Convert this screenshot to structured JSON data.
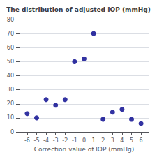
{
  "chart_data": {
    "type": "scatter",
    "title": "The distribution of adjusted IOP (mmHg)",
    "xlabel": "Correction value of IOP (mmHg)",
    "x": [
      -6,
      -5,
      -4,
      -3,
      -2,
      -1,
      0,
      1,
      2,
      3,
      4,
      5,
      6
    ],
    "values": [
      13,
      10,
      23,
      19,
      23,
      50,
      52,
      70,
      9,
      14,
      16,
      9,
      6
    ],
    "xlim": [
      -6.8,
      6.8
    ],
    "xticks": [
      -6,
      -5,
      -4,
      -3,
      -2,
      -1,
      0,
      1,
      2,
      3,
      4,
      5,
      6
    ],
    "ylim": [
      0,
      80
    ],
    "yticks": [
      0,
      10,
      20,
      30,
      40,
      50,
      60,
      70,
      80
    ],
    "color": "#00008B",
    "marker": "circle",
    "grid": true
  }
}
